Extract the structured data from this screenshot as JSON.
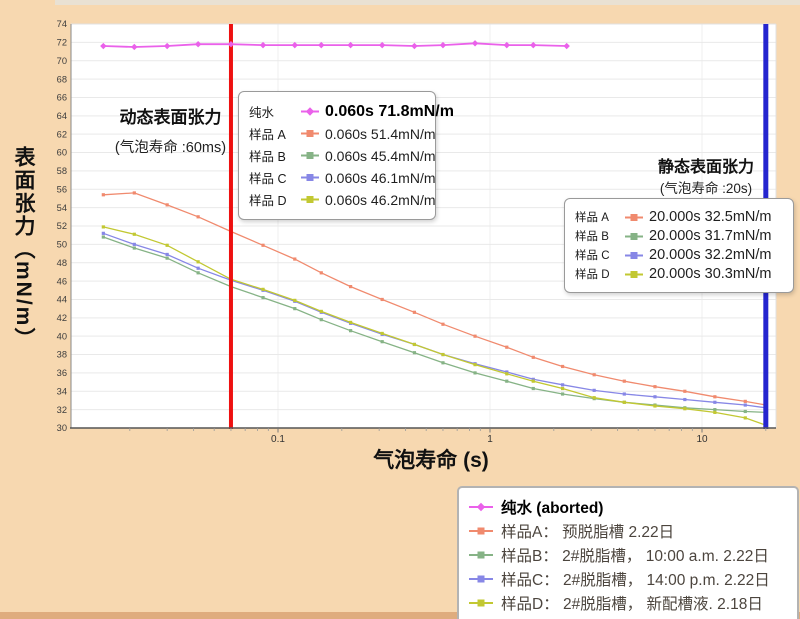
{
  "page": {
    "background": "#f7d8b0",
    "top_band_color": "#e9e1d3",
    "bottom_band_color": "#dfac7e"
  },
  "chart_data": {
    "type": "line",
    "title": "",
    "xlabel": "气泡寿命 (s)",
    "ylabel": "表面张力（mN/m）",
    "x_scale": "log",
    "xlim": [
      0.0106,
      21.5
    ],
    "ylim": [
      30,
      74
    ],
    "y_tick_step": 2,
    "x_ticks": [
      0.1,
      1,
      10
    ],
    "x_tick_labels": [
      "0.1",
      "1",
      "10"
    ],
    "grid": true,
    "ref_lines": [
      {
        "name": "dynamic-ref-line",
        "x": 0.06,
        "color": "#ee1010",
        "width": 4
      },
      {
        "name": "static-ref-line",
        "x": 20,
        "color": "#2525cf",
        "width": 5
      }
    ],
    "series": [
      {
        "key": "water",
        "name": "纯水",
        "color": "#ea61ea",
        "marker": "diamond",
        "x": [
          0.015,
          0.021,
          0.03,
          0.042,
          0.06,
          0.085,
          0.12,
          0.16,
          0.22,
          0.31,
          0.44,
          0.6,
          0.85,
          1.2,
          1.6,
          2.3
        ],
        "y": [
          71.6,
          71.5,
          71.6,
          71.8,
          71.8,
          71.7,
          71.7,
          71.7,
          71.7,
          71.7,
          71.6,
          71.7,
          71.9,
          71.7,
          71.7,
          71.6
        ]
      },
      {
        "key": "A",
        "name": "样品A",
        "color": "#f08a6e",
        "marker": "square",
        "x": [
          0.015,
          0.021,
          0.03,
          0.042,
          0.06,
          0.085,
          0.12,
          0.16,
          0.22,
          0.31,
          0.44,
          0.6,
          0.85,
          1.2,
          1.6,
          2.2,
          3.1,
          4.3,
          6.0,
          8.3,
          11.5,
          16,
          20
        ],
        "y": [
          55.4,
          55.6,
          54.3,
          53.0,
          51.4,
          49.9,
          48.4,
          46.9,
          45.4,
          44.0,
          42.6,
          41.3,
          40.0,
          38.8,
          37.7,
          36.7,
          35.8,
          35.1,
          34.5,
          34.0,
          33.4,
          32.9,
          32.5
        ]
      },
      {
        "key": "B",
        "name": "样品B",
        "color": "#86b386",
        "marker": "square",
        "x": [
          0.015,
          0.021,
          0.03,
          0.042,
          0.06,
          0.085,
          0.12,
          0.16,
          0.22,
          0.31,
          0.44,
          0.6,
          0.85,
          1.2,
          1.6,
          2.2,
          3.1,
          4.3,
          6.0,
          8.3,
          11.5,
          16,
          20
        ],
        "y": [
          50.8,
          49.6,
          48.5,
          46.9,
          45.4,
          44.2,
          43.0,
          41.8,
          40.6,
          39.4,
          38.2,
          37.1,
          36.0,
          35.1,
          34.3,
          33.7,
          33.2,
          32.8,
          32.5,
          32.2,
          32.0,
          31.8,
          31.7
        ]
      },
      {
        "key": "C",
        "name": "样品C",
        "color": "#8787e6",
        "marker": "square",
        "x": [
          0.015,
          0.021,
          0.03,
          0.042,
          0.06,
          0.085,
          0.12,
          0.16,
          0.22,
          0.31,
          0.44,
          0.6,
          0.85,
          1.2,
          1.6,
          2.2,
          3.1,
          4.3,
          6.0,
          8.3,
          11.5,
          16,
          20
        ],
        "y": [
          51.2,
          50.0,
          48.9,
          47.4,
          46.1,
          45.0,
          43.8,
          42.6,
          41.4,
          40.2,
          39.1,
          38.0,
          37.0,
          36.1,
          35.3,
          34.7,
          34.1,
          33.7,
          33.4,
          33.1,
          32.8,
          32.5,
          32.2
        ]
      },
      {
        "key": "D",
        "name": "样品D",
        "color": "#c2c832",
        "marker": "square",
        "x": [
          0.015,
          0.021,
          0.03,
          0.042,
          0.06,
          0.085,
          0.12,
          0.16,
          0.22,
          0.31,
          0.44,
          0.6,
          0.85,
          1.2,
          1.6,
          2.2,
          3.1,
          4.3,
          6.0,
          8.3,
          11.5,
          16,
          20
        ],
        "y": [
          51.9,
          51.1,
          49.9,
          48.1,
          46.2,
          45.1,
          43.9,
          42.7,
          41.5,
          40.3,
          39.1,
          38.0,
          36.9,
          35.9,
          35.1,
          34.3,
          33.3,
          32.8,
          32.4,
          32.1,
          31.7,
          31.1,
          30.3
        ]
      }
    ]
  },
  "axes": {
    "x_title": "气泡寿命 (s)",
    "y_title": "表面张力（mN/m）"
  },
  "annotations": {
    "dynamic_title": "动态表面张力",
    "dynamic_subtitle": "(气泡寿命 :60ms)",
    "static_title": "静态表面张力",
    "static_subtitle": "(气泡寿命 :20s)"
  },
  "tooltip_dynamic": {
    "rows": [
      {
        "label": "纯水",
        "series": "water",
        "value": "0.060s 71.8mN/m",
        "bold": true
      },
      {
        "label": "样品 A",
        "series": "A",
        "value": "0.060s 51.4mN/m",
        "bold": false
      },
      {
        "label": "样品 B",
        "series": "B",
        "value": "0.060s 45.4mN/m",
        "bold": false
      },
      {
        "label": "样品 C",
        "series": "C",
        "value": "0.060s 46.1mN/m",
        "bold": false
      },
      {
        "label": "样品 D",
        "series": "D",
        "value": "0.060s 46.2mN/m",
        "bold": false
      }
    ]
  },
  "tooltip_static": {
    "rows": [
      {
        "label": "样品 A",
        "series": "A",
        "value": "20.000s 32.5mN/m"
      },
      {
        "label": "样品 B",
        "series": "B",
        "value": "20.000s 31.7mN/m"
      },
      {
        "label": "样品 C",
        "series": "C",
        "value": "20.000s 32.2mN/m"
      },
      {
        "label": "样品 D",
        "series": "D",
        "value": "20.000s 30.3mN/m"
      }
    ]
  },
  "legend": {
    "items": [
      {
        "label": "纯水 (aborted)",
        "series": "water",
        "bold": true
      },
      {
        "label": "样品A： 预脱脂槽 2.22日",
        "series": "A",
        "bold": false
      },
      {
        "label": "样品B： 2#脱脂槽， 10:00 a.m.  2.22日",
        "series": "B",
        "bold": false
      },
      {
        "label": "样品C： 2#脱脂槽， 14:00 p.m.  2.22日",
        "series": "C",
        "bold": false
      },
      {
        "label": "样品D： 2#脱脂槽， 新配槽液. 2.18日",
        "series": "D",
        "bold": false
      }
    ]
  }
}
